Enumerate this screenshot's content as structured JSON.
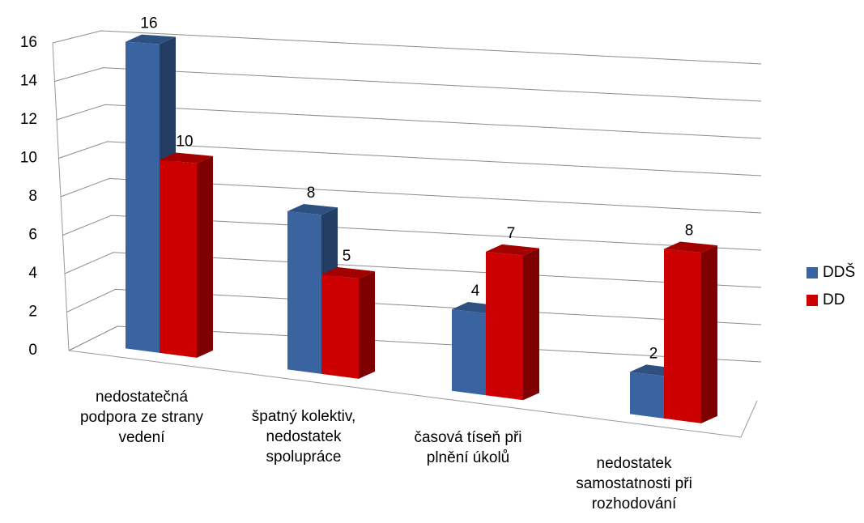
{
  "chart_data": {
    "type": "bar3d",
    "categories": [
      "nedostatečná podpora ze strany vedení",
      "špatný kolektiv, nedostatek spolupráce",
      "časová tíseň při plnění úkolů",
      "nedostatek samostatnosti při rozhodování"
    ],
    "series": [
      {
        "name": "DDŠ",
        "color": "#3a64a0",
        "values": [
          16,
          8,
          4,
          2
        ]
      },
      {
        "name": "DD",
        "color": "#cc0000",
        "values": [
          10,
          5,
          7,
          8
        ]
      }
    ],
    "ylim": [
      0,
      16
    ],
    "yticks": [
      0,
      2,
      4,
      6,
      8,
      10,
      12,
      14,
      16
    ],
    "grid": true,
    "legend": "right"
  }
}
